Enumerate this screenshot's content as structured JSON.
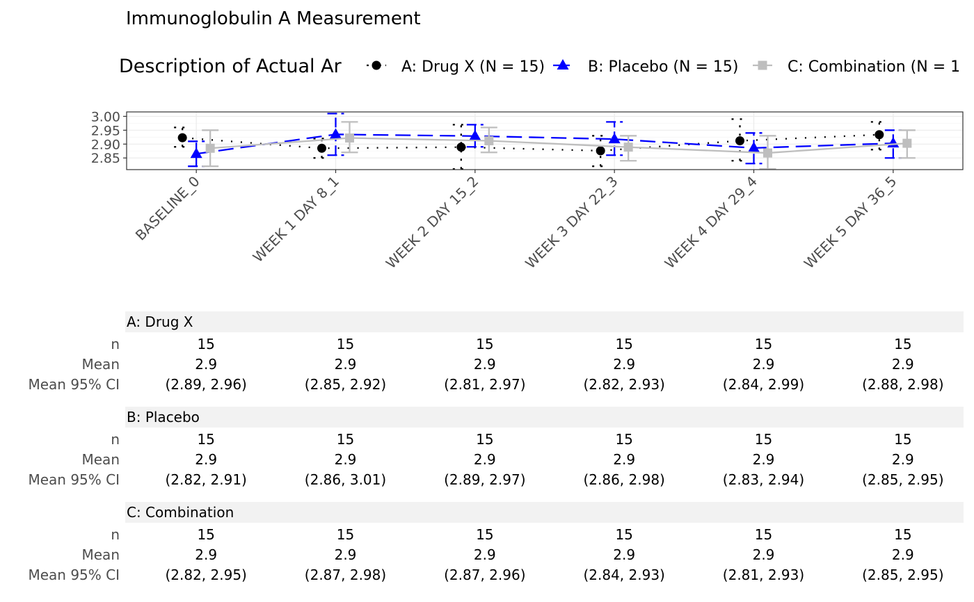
{
  "title": "Immunoglobulin A Measurement",
  "legend": {
    "title": "Description of Actual Ar",
    "position": "top",
    "entries": [
      {
        "label": "A: Drug X (N = 15)",
        "color": "#000000",
        "shape": "circle",
        "line": "dotted"
      },
      {
        "label": "B: Placebo (N = 15)",
        "color": "#0000ff",
        "shape": "triangle",
        "line": "dashed"
      },
      {
        "label": "C: Combination (N = 1",
        "color": "#bebebe",
        "shape": "square",
        "line": "solid"
      }
    ]
  },
  "chart_data": {
    "type": "line",
    "title": "Immunoglobulin A Measurement",
    "xlabel": "",
    "ylabel": "",
    "categories": [
      "BASELINE_0",
      "WEEK 1 DAY 8_1",
      "WEEK 2 DAY 15_2",
      "WEEK 3 DAY 22_3",
      "WEEK 4 DAY 29_4",
      "WEEK 5 DAY 36_5"
    ],
    "ylim": [
      2.808,
      3.016
    ],
    "yticks": [
      "2.85",
      "2.90",
      "2.95",
      "3.00"
    ],
    "grid": true,
    "series": [
      {
        "name": "A: Drug X (N = 15)",
        "color": "#000000",
        "marker": "circle",
        "dash": "dotted",
        "values": [
          2.923,
          2.885,
          2.889,
          2.876,
          2.912,
          2.934
        ],
        "ci_low": [
          2.89,
          2.85,
          2.81,
          2.82,
          2.84,
          2.88
        ],
        "ci_high": [
          2.96,
          2.92,
          2.97,
          2.93,
          2.99,
          2.98
        ]
      },
      {
        "name": "B: Placebo (N = 15)",
        "color": "#0000ff",
        "marker": "triangle",
        "dash": "dashed",
        "values": [
          2.865,
          2.935,
          2.929,
          2.918,
          2.886,
          2.903
        ],
        "ci_low": [
          2.82,
          2.86,
          2.89,
          2.86,
          2.83,
          2.85
        ],
        "ci_high": [
          2.91,
          3.01,
          2.97,
          2.98,
          2.94,
          2.95
        ]
      },
      {
        "name": "C: Combination (N = 1",
        "color": "#bebebe",
        "marker": "square",
        "dash": "solid",
        "values": [
          2.885,
          2.922,
          2.912,
          2.889,
          2.868,
          2.903
        ],
        "ci_low": [
          2.82,
          2.87,
          2.87,
          2.84,
          2.81,
          2.85
        ],
        "ci_high": [
          2.95,
          2.98,
          2.96,
          2.93,
          2.93,
          2.95
        ]
      }
    ]
  },
  "table": {
    "row_labels": [
      "n",
      "Mean",
      "Mean 95% CI"
    ],
    "groups": [
      {
        "name": "A: Drug X",
        "n": [
          "15",
          "15",
          "15",
          "15",
          "15",
          "15"
        ],
        "mean": [
          "2.9",
          "2.9",
          "2.9",
          "2.9",
          "2.9",
          "2.9"
        ],
        "ci": [
          "(2.89, 2.96)",
          "(2.85, 2.92)",
          "(2.81, 2.97)",
          "(2.82, 2.93)",
          "(2.84, 2.99)",
          "(2.88, 2.98)"
        ]
      },
      {
        "name": "B: Placebo",
        "n": [
          "15",
          "15",
          "15",
          "15",
          "15",
          "15"
        ],
        "mean": [
          "2.9",
          "2.9",
          "2.9",
          "2.9",
          "2.9",
          "2.9"
        ],
        "ci": [
          "(2.82, 2.91)",
          "(2.86, 3.01)",
          "(2.89, 2.97)",
          "(2.86, 2.98)",
          "(2.83, 2.94)",
          "(2.85, 2.95)"
        ]
      },
      {
        "name": "C: Combination",
        "n": [
          "15",
          "15",
          "15",
          "15",
          "15",
          "15"
        ],
        "mean": [
          "2.9",
          "2.9",
          "2.9",
          "2.9",
          "2.9",
          "2.9"
        ],
        "ci": [
          "(2.82, 2.95)",
          "(2.87, 2.98)",
          "(2.87, 2.96)",
          "(2.84, 2.93)",
          "(2.81, 2.93)",
          "(2.85, 2.95)"
        ]
      }
    ]
  }
}
